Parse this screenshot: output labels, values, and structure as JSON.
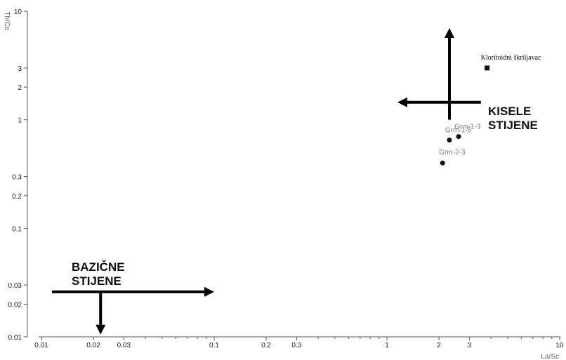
{
  "chart_data": {
    "type": "scatter",
    "title": "",
    "xlabel": "La/Sc",
    "ylabel": "Th/Co",
    "xscale": "log",
    "yscale": "log",
    "xlim": [
      0.01,
      10
    ],
    "ylim": [
      0.01,
      10
    ],
    "grid": false,
    "x_ticks": [
      {
        "value": 0.01,
        "label": "0.01"
      },
      {
        "value": 0.02,
        "label": "0.02"
      },
      {
        "value": 0.03,
        "label": "0.03"
      },
      {
        "value": 0.1,
        "label": "0.1"
      },
      {
        "value": 0.2,
        "label": "0.2"
      },
      {
        "value": 0.3,
        "label": "0.3"
      },
      {
        "value": 1,
        "label": "1"
      },
      {
        "value": 2,
        "label": "2"
      },
      {
        "value": 3,
        "label": "3"
      },
      {
        "value": 10,
        "label": "10"
      }
    ],
    "x_minor": [
      0.04,
      0.05,
      0.06,
      0.07,
      0.08,
      0.09,
      0.4,
      0.5,
      0.6,
      0.7,
      0.8,
      0.9,
      4,
      5,
      6,
      7,
      8,
      9
    ],
    "y_ticks": [
      {
        "value": 0.01,
        "label": "0.01"
      },
      {
        "value": 0.02,
        "label": "0.02"
      },
      {
        "value": 0.03,
        "label": "0.03"
      },
      {
        "value": 0.1,
        "label": "0.1"
      },
      {
        "value": 0.2,
        "label": "0.2"
      },
      {
        "value": 0.3,
        "label": "0.3"
      },
      {
        "value": 1,
        "label": "1"
      },
      {
        "value": 2,
        "label": "2"
      },
      {
        "value": 3,
        "label": "3"
      },
      {
        "value": 10,
        "label": "10"
      }
    ],
    "points": [
      {
        "label": "Kloritoidni škriljavac",
        "x": 3.8,
        "y": 3.0,
        "marker": "square"
      },
      {
        "label": "Grm-1-3",
        "x": 2.6,
        "y": 0.7,
        "marker": "circle"
      },
      {
        "label": "Grm-1-5",
        "x": 2.3,
        "y": 0.65,
        "marker": "circle"
      },
      {
        "label": "Grm-2-3",
        "x": 2.1,
        "y": 0.4,
        "marker": "circle"
      }
    ],
    "regions": [
      {
        "label_lines": [
          "KISELE",
          "STIJENE"
        ],
        "arrows": [
          {
            "from": [
              2.3,
              1.0
            ],
            "to": [
              2.3,
              7.0
            ]
          },
          {
            "from": [
              3.5,
              1.45
            ],
            "to": [
              1.15,
              1.45
            ]
          }
        ]
      },
      {
        "label_lines": [
          "BAZIČNE",
          "STIJENE"
        ],
        "arrows": [
          {
            "from": [
              0.0115,
              0.026
            ],
            "to": [
              0.1,
              0.026
            ]
          },
          {
            "from": [
              0.022,
              0.026
            ],
            "to": [
              0.022,
              0.0105
            ]
          }
        ]
      }
    ],
    "colors": {
      "axis": "#555555",
      "marker": "#111111",
      "arrow": "#000000"
    }
  }
}
